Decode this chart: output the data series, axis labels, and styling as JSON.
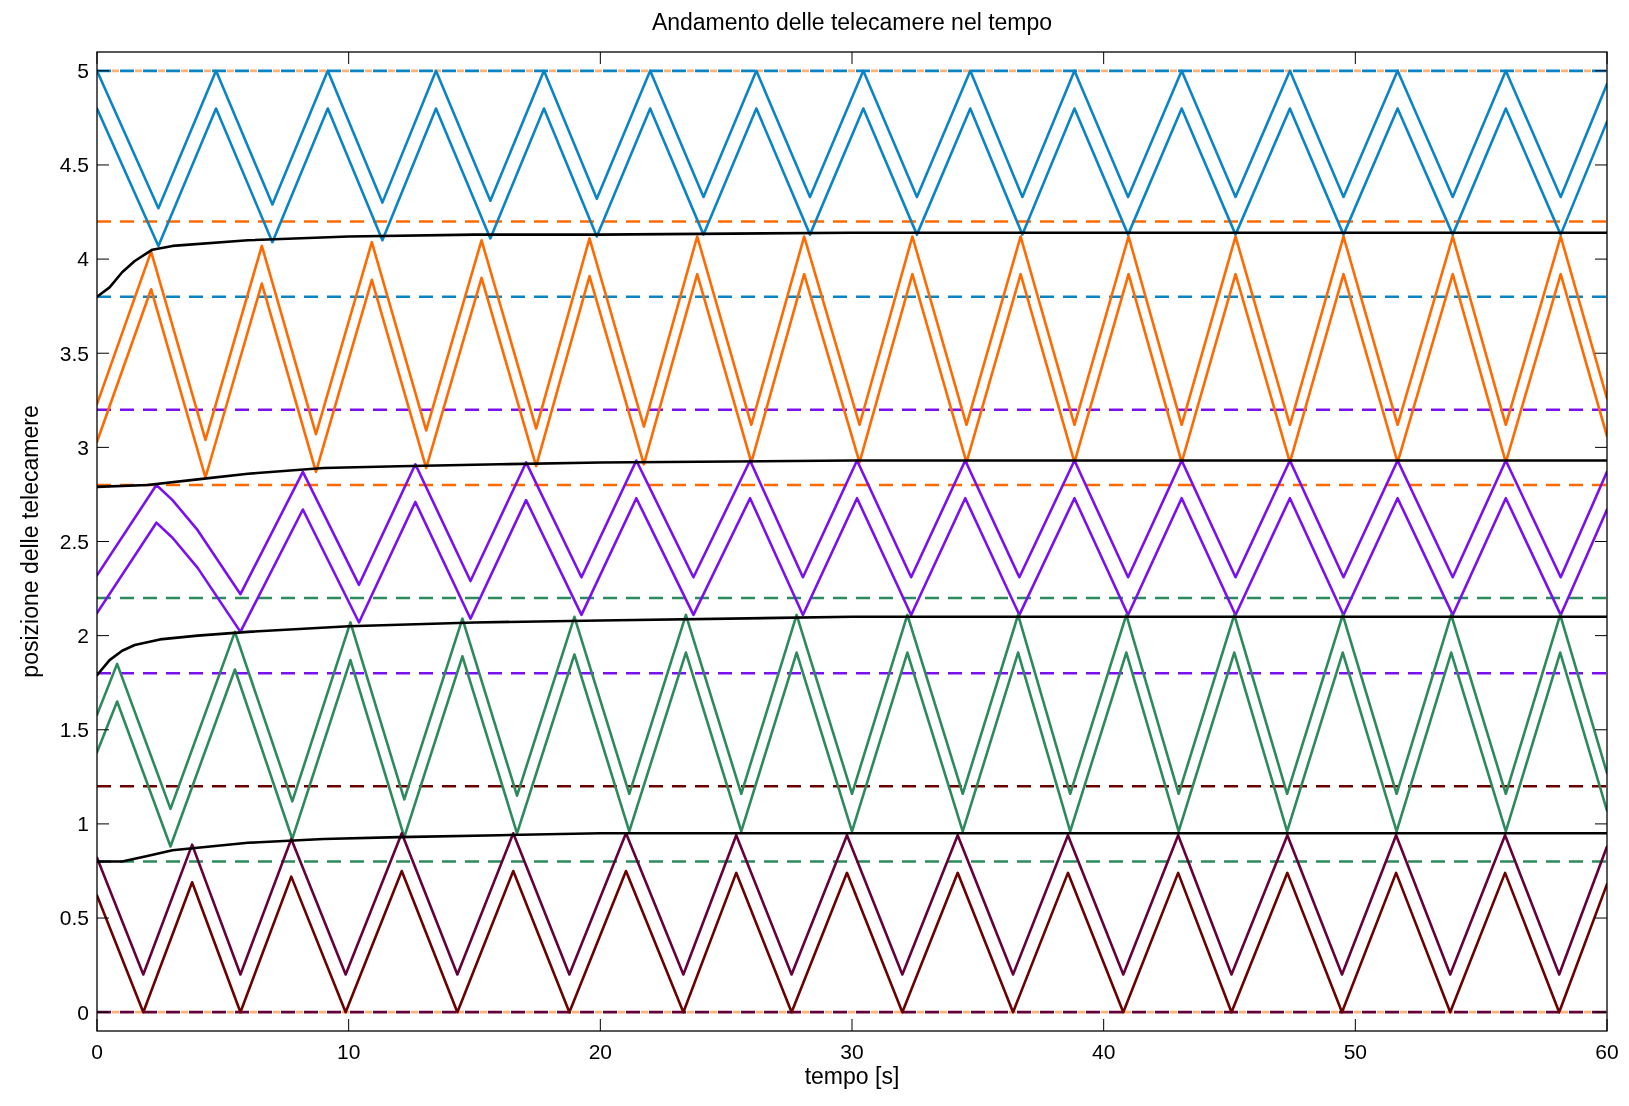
{
  "chart_data": {
    "type": "line",
    "title": "Andamento delle telecamere nel tempo",
    "xlabel": "tempo [s]",
    "ylabel": "posizione delle telecamere",
    "xlim": [
      0,
      60
    ],
    "ylim": [
      -0.1,
      5.1
    ],
    "xticks": [
      0,
      10,
      20,
      30,
      40,
      50,
      60
    ],
    "yticks": [
      0,
      0.5,
      1,
      1.5,
      2,
      2.5,
      3,
      3.5,
      4,
      4.5,
      5
    ],
    "grid": false,
    "line_style": "solid",
    "marker": "none",
    "series": [
      {
        "color": "#0b84c6",
        "x": [
          0,
          2.44,
          4.73,
          6.97,
          9.17,
          11.34,
          13.47,
          15.63,
          17.76,
          19.86,
          21.98,
          24.1,
          26.2,
          28.33,
          30.45,
          32.58,
          34.7,
          36.77,
          38.84,
          40.97,
          43.1,
          45.24,
          47.4,
          49.53,
          51.68,
          53.87,
          55.98,
          58.16,
          60
        ],
        "values": [
          5,
          4.27,
          5,
          4.29,
          5,
          4.3,
          5,
          4.31,
          5,
          4.32,
          5,
          4.33,
          5,
          4.33,
          5,
          4.33,
          5,
          4.33,
          5,
          4.33,
          5,
          4.33,
          5,
          4.33,
          5,
          4.33,
          5,
          4.33,
          4.93
        ]
      },
      {
        "color": "#0b84c6",
        "x": [
          0,
          2.44,
          4.73,
          6.97,
          9.17,
          11.34,
          13.47,
          15.63,
          17.76,
          19.86,
          21.98,
          24.1,
          26.2,
          28.33,
          30.45,
          32.58,
          34.7,
          36.77,
          38.84,
          40.97,
          43.1,
          45.24,
          47.4,
          49.53,
          51.68,
          53.87,
          55.98,
          58.16,
          60
        ],
        "values": [
          4.8,
          4.07,
          4.8,
          4.09,
          4.8,
          4.1,
          4.8,
          4.11,
          4.8,
          4.12,
          4.8,
          4.13,
          4.8,
          4.13,
          4.8,
          4.13,
          4.8,
          4.13,
          4.8,
          4.13,
          4.8,
          4.13,
          4.8,
          4.13,
          4.8,
          4.13,
          4.8,
          4.13,
          4.73
        ]
      },
      {
        "color": "#ff6a00",
        "x": [
          0,
          2.15,
          4.31,
          6.55,
          8.7,
          10.92,
          13.08,
          15.28,
          17.45,
          19.57,
          21.73,
          23.85,
          26.0,
          28.1,
          30.3,
          32.4,
          34.55,
          36.7,
          38.84,
          40.99,
          43.1,
          45.24,
          47.4,
          49.53,
          51.68,
          53.87,
          55.98,
          58.16,
          60
        ],
        "values": [
          3.23,
          4.04,
          3.04,
          4.07,
          3.07,
          4.09,
          3.09,
          4.1,
          3.1,
          4.11,
          3.11,
          4.12,
          3.12,
          4.12,
          3.12,
          4.12,
          3.12,
          4.12,
          3.12,
          4.12,
          3.12,
          4.12,
          3.12,
          4.12,
          3.12,
          4.12,
          3.12,
          4.12,
          3.26
        ]
      },
      {
        "color": "#ff6a00",
        "x": [
          0,
          2.15,
          4.31,
          6.55,
          8.7,
          10.92,
          13.08,
          15.28,
          17.45,
          19.57,
          21.73,
          23.85,
          26.0,
          28.1,
          30.3,
          32.4,
          34.55,
          36.7,
          38.84,
          40.99,
          43.1,
          45.24,
          47.4,
          49.53,
          51.68,
          53.87,
          55.98,
          58.16,
          60
        ],
        "values": [
          3.03,
          3.84,
          2.84,
          3.87,
          2.87,
          3.89,
          2.89,
          3.9,
          2.9,
          3.91,
          2.91,
          3.92,
          2.92,
          3.92,
          2.92,
          3.92,
          2.92,
          3.92,
          2.92,
          3.92,
          2.92,
          3.92,
          2.92,
          3.92,
          2.92,
          3.92,
          2.92,
          3.92,
          3.06
        ]
      },
      {
        "color": "#7a10f0",
        "x": [
          0,
          2.36,
          3.0,
          4.0,
          5.7,
          8.18,
          10.41,
          12.65,
          14.84,
          17.05,
          19.25,
          21.43,
          23.7,
          25.95,
          28.05,
          30.2,
          32.35,
          34.5,
          36.65,
          38.84,
          40.97,
          43.1,
          45.24,
          47.4,
          49.53,
          51.68,
          53.87,
          55.98,
          58.16,
          60
        ],
        "values": [
          2.32,
          2.8,
          2.72,
          2.56,
          2.22,
          2.87,
          2.27,
          2.91,
          2.29,
          2.92,
          2.31,
          2.93,
          2.31,
          2.93,
          2.31,
          2.93,
          2.31,
          2.93,
          2.31,
          2.93,
          2.31,
          2.93,
          2.31,
          2.93,
          2.31,
          2.93,
          2.31,
          2.93,
          2.31,
          2.87
        ]
      },
      {
        "color": "#7a10f0",
        "x": [
          0,
          2.36,
          3.0,
          4.0,
          5.7,
          8.18,
          10.41,
          12.65,
          14.84,
          17.05,
          19.25,
          21.43,
          23.7,
          25.95,
          28.05,
          30.2,
          32.35,
          34.5,
          36.65,
          38.84,
          40.97,
          43.1,
          45.24,
          47.4,
          49.53,
          51.68,
          53.87,
          55.98,
          58.16,
          60
        ],
        "values": [
          2.12,
          2.6,
          2.52,
          2.36,
          2.02,
          2.67,
          2.07,
          2.71,
          2.09,
          2.72,
          2.11,
          2.73,
          2.11,
          2.73,
          2.11,
          2.73,
          2.11,
          2.73,
          2.11,
          2.73,
          2.11,
          2.73,
          2.11,
          2.73,
          2.11,
          2.73,
          2.11,
          2.73,
          2.11,
          2.67
        ]
      },
      {
        "color": "#2c8a5c",
        "x": [
          0,
          0.8,
          2.92,
          5.48,
          7.76,
          10.07,
          12.21,
          14.52,
          16.69,
          18.97,
          21.15,
          23.4,
          25.6,
          27.8,
          30.0,
          32.2,
          34.4,
          36.6,
          38.67,
          40.9,
          42.98,
          45.19,
          47.29,
          49.5,
          51.64,
          53.81,
          55.98,
          58.14,
          60
        ],
        "values": [
          1.58,
          1.85,
          1.08,
          2.02,
          1.12,
          2.07,
          1.13,
          2.09,
          1.15,
          2.1,
          1.16,
          2.11,
          1.16,
          2.11,
          1.16,
          2.11,
          1.16,
          2.11,
          1.16,
          2.11,
          1.16,
          2.11,
          1.16,
          2.11,
          1.16,
          2.11,
          1.16,
          2.11,
          1.27
        ]
      },
      {
        "color": "#2c8a5c",
        "x": [
          0,
          0.8,
          2.92,
          5.48,
          7.76,
          10.07,
          12.21,
          14.52,
          16.69,
          18.97,
          21.15,
          23.4,
          25.6,
          27.8,
          30.0,
          32.2,
          34.4,
          36.6,
          38.67,
          40.9,
          42.98,
          45.19,
          47.29,
          49.5,
          51.64,
          53.81,
          55.98,
          58.14,
          60
        ],
        "values": [
          1.38,
          1.65,
          0.88,
          1.82,
          0.92,
          1.87,
          0.93,
          1.89,
          0.95,
          1.9,
          0.96,
          1.91,
          0.96,
          1.91,
          0.96,
          1.91,
          0.96,
          1.91,
          0.96,
          1.91,
          0.96,
          1.91,
          0.96,
          1.91,
          0.96,
          1.91,
          0.96,
          1.91,
          1.07
        ]
      },
      {
        "color": "#66003a",
        "x": [
          0,
          1.84,
          3.78,
          5.7,
          7.72,
          9.88,
          12.11,
          14.32,
          16.54,
          18.77,
          21.02,
          23.3,
          25.4,
          27.6,
          29.8,
          32.0,
          34.2,
          36.4,
          38.58,
          40.78,
          42.96,
          45.08,
          47.3,
          49.47,
          51.62,
          53.77,
          55.95,
          58.1,
          60
        ],
        "values": [
          0.82,
          0.2,
          0.89,
          0.2,
          0.92,
          0.2,
          0.95,
          0.2,
          0.95,
          0.2,
          0.95,
          0.2,
          0.94,
          0.2,
          0.94,
          0.2,
          0.94,
          0.2,
          0.94,
          0.2,
          0.94,
          0.2,
          0.94,
          0.2,
          0.94,
          0.2,
          0.94,
          0.2,
          0.88
        ]
      },
      {
        "color": "#6b0000",
        "x": [
          0,
          1.84,
          3.78,
          5.7,
          7.72,
          9.88,
          12.11,
          14.32,
          16.54,
          18.77,
          21.02,
          23.3,
          25.4,
          27.6,
          29.8,
          32.0,
          34.2,
          36.4,
          38.58,
          40.78,
          42.96,
          45.08,
          47.3,
          49.47,
          51.62,
          53.77,
          55.95,
          58.1,
          60
        ],
        "values": [
          0.62,
          0,
          0.69,
          0,
          0.72,
          0,
          0.75,
          0,
          0.75,
          0,
          0.75,
          0,
          0.74,
          0,
          0.74,
          0,
          0.74,
          0,
          0.74,
          0,
          0.74,
          0,
          0.74,
          0,
          0.74,
          0,
          0.74,
          0,
          0.68
        ]
      },
      {
        "color": "#000000",
        "x": [
          0,
          0.5,
          1,
          1.5,
          2.2,
          3,
          6,
          10,
          15,
          20,
          30,
          60
        ],
        "values": [
          3.8,
          3.85,
          3.93,
          3.99,
          4.05,
          4.07,
          4.1,
          4.12,
          4.13,
          4.13,
          4.14,
          4.14
        ]
      },
      {
        "color": "#000000",
        "x": [
          0,
          2,
          4,
          6,
          9,
          12,
          16,
          20,
          30,
          60
        ],
        "values": [
          2.79,
          2.8,
          2.83,
          2.86,
          2.89,
          2.9,
          2.91,
          2.92,
          2.93,
          2.93
        ]
      },
      {
        "color": "#000000",
        "x": [
          0,
          0.5,
          1,
          1.5,
          2.5,
          4,
          6,
          10,
          15,
          20,
          30,
          60
        ],
        "values": [
          1.79,
          1.87,
          1.92,
          1.95,
          1.98,
          2.0,
          2.02,
          2.05,
          2.07,
          2.08,
          2.1,
          2.1
        ]
      },
      {
        "color": "#000000",
        "x": [
          0,
          1,
          2,
          3,
          4.5,
          6,
          9,
          12,
          16,
          20,
          30,
          60
        ],
        "values": [
          0.8,
          0.8,
          0.83,
          0.86,
          0.88,
          0.9,
          0.92,
          0.93,
          0.94,
          0.95,
          0.95,
          0.95
        ]
      }
    ],
    "ref_lines": [
      {
        "axis": "y",
        "value": 5,
        "color": "#0b84c6",
        "line_style": "dashed"
      },
      {
        "axis": "y",
        "value": 5,
        "color": "#ffb273",
        "line_style": "dotted"
      },
      {
        "axis": "y",
        "value": 4.2,
        "color": "#ff6a00",
        "line_style": "dashed"
      },
      {
        "axis": "y",
        "value": 3.8,
        "color": "#0b84c6",
        "line_style": "dashed"
      },
      {
        "axis": "y",
        "value": 3.2,
        "color": "#7a10f0",
        "line_style": "dashed"
      },
      {
        "axis": "y",
        "value": 2.8,
        "color": "#ff6a00",
        "line_style": "dashed"
      },
      {
        "axis": "y",
        "value": 2.2,
        "color": "#2c8a5c",
        "line_style": "dashed"
      },
      {
        "axis": "y",
        "value": 1.8,
        "color": "#7a10f0",
        "line_style": "dashed"
      },
      {
        "axis": "y",
        "value": 1.2,
        "color": "#6b0000",
        "line_style": "dashed"
      },
      {
        "axis": "y",
        "value": 0.8,
        "color": "#2c8a5c",
        "line_style": "dashed"
      },
      {
        "axis": "y",
        "value": 0,
        "color": "#66003a",
        "line_style": "dashed"
      },
      {
        "axis": "y",
        "value": 0,
        "color": "#ffb273",
        "line_style": "dotted"
      }
    ]
  }
}
